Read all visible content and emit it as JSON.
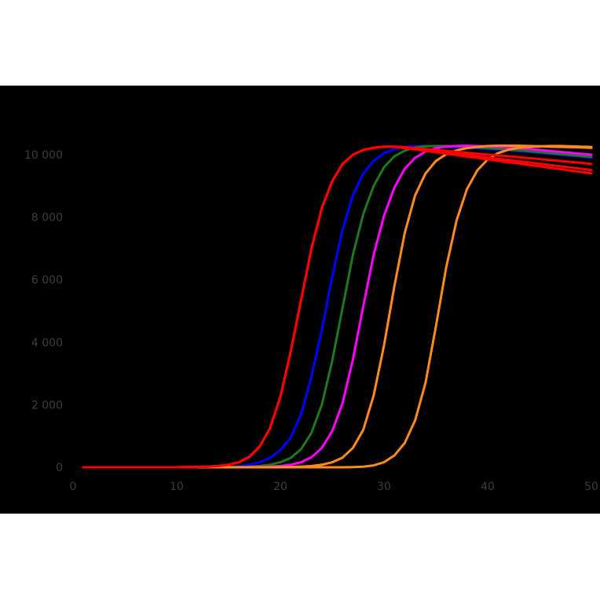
{
  "chart_data": {
    "type": "line",
    "title": "",
    "xlabel": "",
    "ylabel": "",
    "xlim": [
      0,
      50
    ],
    "ylim": [
      0,
      10000
    ],
    "grid": false,
    "legend": "none",
    "x_ticks": [
      {
        "value": 0,
        "label": "0"
      },
      {
        "value": 10,
        "label": "10"
      },
      {
        "value": 20,
        "label": "20"
      },
      {
        "value": 30,
        "label": "30"
      },
      {
        "value": 40,
        "label": "40"
      },
      {
        "value": 50,
        "label": "50"
      }
    ],
    "y_ticks": [
      {
        "value": 0,
        "label": "0"
      },
      {
        "value": 2000,
        "label": "2 000"
      },
      {
        "value": 4000,
        "label": "4 000"
      },
      {
        "value": 6000,
        "label": "6 000"
      },
      {
        "value": 8000,
        "label": "8 000"
      },
      {
        "value": 10000,
        "label": "10 000"
      }
    ],
    "colors": {
      "background": "#000000",
      "tick_text": "#3a3f45"
    },
    "x": [
      1,
      2,
      3,
      4,
      5,
      6,
      7,
      8,
      9,
      10,
      11,
      12,
      13,
      14,
      15,
      16,
      17,
      18,
      19,
      20,
      21,
      22,
      23,
      24,
      25,
      26,
      27,
      28,
      29,
      30,
      31,
      32,
      33,
      34,
      35,
      36,
      37,
      38,
      39,
      40,
      41,
      42,
      43,
      44,
      45,
      46,
      47,
      48,
      49,
      50
    ],
    "series": [
      {
        "color": "#ff0000",
        "values": [
          0,
          0,
          0,
          0,
          0,
          0,
          0,
          0,
          0,
          0,
          5,
          10,
          20,
          40,
          80,
          160,
          330,
          660,
          1250,
          2250,
          3700,
          5350,
          7000,
          8300,
          9150,
          9700,
          10000,
          10150,
          10220,
          10260,
          10260,
          10240,
          10210,
          10180,
          10150,
          10120,
          10090,
          10060,
          10030,
          10000,
          9980,
          9950,
          9920,
          9890,
          9860,
          9830,
          9800,
          9770,
          9740,
          9700
        ]
      },
      {
        "color": "#ff0000",
        "values": [
          0,
          0,
          0,
          0,
          0,
          0,
          0,
          0,
          0,
          0,
          5,
          10,
          20,
          40,
          80,
          160,
          330,
          660,
          1250,
          2250,
          3700,
          5350,
          7000,
          8300,
          9150,
          9700,
          10000,
          10150,
          10220,
          10260,
          10260,
          10230,
          10190,
          10150,
          10110,
          10070,
          10030,
          9990,
          9950,
          9910,
          9870,
          9830,
          9790,
          9750,
          9710,
          9670,
          9630,
          9590,
          9550,
          9510
        ]
      },
      {
        "color": "#ff0000",
        "values": [
          0,
          0,
          0,
          0,
          0,
          0,
          0,
          0,
          0,
          0,
          5,
          10,
          20,
          40,
          80,
          160,
          330,
          660,
          1250,
          2250,
          3700,
          5350,
          7000,
          8300,
          9150,
          9700,
          10000,
          10150,
          10220,
          10260,
          10250,
          10210,
          10170,
          10120,
          10080,
          10030,
          9990,
          9940,
          9900,
          9850,
          9810,
          9760,
          9720,
          9670,
          9630,
          9580,
          9540,
          9490,
          9450,
          9400
        ]
      },
      {
        "color": "#0000ff",
        "values": [
          0,
          0,
          0,
          0,
          0,
          0,
          0,
          0,
          0,
          0,
          0,
          0,
          5,
          10,
          20,
          40,
          80,
          160,
          300,
          550,
          950,
          1700,
          2900,
          4400,
          6100,
          7600,
          8700,
          9400,
          9800,
          10050,
          10180,
          10250,
          10270,
          10280,
          10270,
          10260,
          10240,
          10220,
          10200,
          10180,
          10160,
          10140,
          10110,
          10090,
          10060,
          10030,
          10000,
          9970,
          9940,
          9900
        ]
      },
      {
        "color": "#1e7a1e",
        "values": [
          0,
          0,
          0,
          0,
          0,
          0,
          0,
          0,
          0,
          0,
          0,
          0,
          0,
          0,
          5,
          10,
          20,
          40,
          80,
          160,
          300,
          580,
          1100,
          2000,
          3400,
          5100,
          6800,
          8100,
          9000,
          9600,
          9950,
          10130,
          10230,
          10270,
          10280,
          10280,
          10270,
          10250,
          10230,
          10210,
          10190,
          10160,
          10140,
          10110,
          10080,
          10050,
          10020,
          9990,
          9960,
          9930
        ]
      },
      {
        "color": "#ff00ff",
        "values": [
          0,
          0,
          0,
          0,
          0,
          0,
          0,
          0,
          0,
          0,
          0,
          0,
          0,
          0,
          0,
          0,
          5,
          10,
          20,
          40,
          80,
          160,
          320,
          620,
          1150,
          2050,
          3450,
          5150,
          6800,
          8050,
          8950,
          9550,
          9900,
          10100,
          10210,
          10260,
          10280,
          10290,
          10280,
          10270,
          10250,
          10230,
          10210,
          10180,
          10150,
          10120,
          10090,
          10060,
          10030,
          10000
        ]
      },
      {
        "color": "#ff8c1a",
        "values": [
          0,
          0,
          0,
          0,
          0,
          0,
          0,
          0,
          0,
          0,
          0,
          0,
          0,
          0,
          0,
          0,
          0,
          0,
          0,
          5,
          10,
          20,
          40,
          80,
          160,
          310,
          620,
          1200,
          2300,
          3900,
          5800,
          7500,
          8700,
          9400,
          9800,
          10020,
          10140,
          10210,
          10250,
          10280,
          10290,
          10290,
          10290,
          10280,
          10270,
          10260,
          10250,
          10240,
          10230,
          10220
        ]
      },
      {
        "color": "#ff8c1a",
        "values": [
          0,
          0,
          0,
          0,
          0,
          0,
          0,
          0,
          0,
          0,
          0,
          0,
          0,
          0,
          0,
          0,
          0,
          0,
          0,
          0,
          0,
          0,
          0,
          0,
          0,
          0,
          5,
          20,
          60,
          160,
          380,
          780,
          1500,
          2700,
          4500,
          6400,
          7900,
          8900,
          9500,
          9850,
          10050,
          10160,
          10220,
          10250,
          10270,
          10280,
          10280,
          10270,
          10260,
          10250
        ]
      }
    ]
  }
}
